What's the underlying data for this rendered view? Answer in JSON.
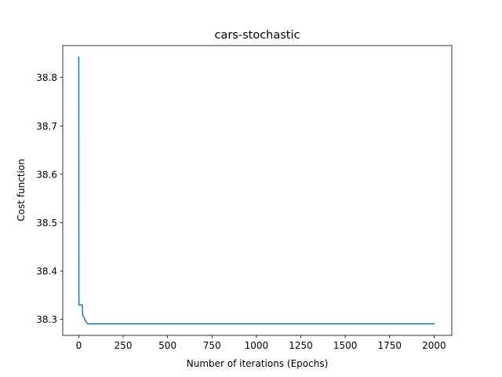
{
  "chart_data": {
    "type": "line",
    "title": "cars-stochastic",
    "xlabel": "Number of iterations (Epochs)",
    "ylabel": "Cost function",
    "xlim": [
      -90,
      2100
    ],
    "ylim": [
      38.267,
      38.866
    ],
    "xticks": [
      0,
      250,
      500,
      750,
      1000,
      1250,
      1500,
      1750,
      2000
    ],
    "xtick_labels": [
      "0",
      "250",
      "500",
      "750",
      "1000",
      "1250",
      "1500",
      "1750",
      "2000"
    ],
    "yticks": [
      38.3,
      38.4,
      38.5,
      38.6,
      38.7,
      38.8
    ],
    "ytick_labels": [
      "38.3",
      "38.4",
      "38.5",
      "38.6",
      "38.7",
      "38.8"
    ],
    "grid": false,
    "legend": "none",
    "series": [
      {
        "color": "#1f77b4",
        "x": [
          0,
          1,
          5,
          20,
          22,
          30,
          35,
          40,
          45,
          50,
          60,
          100,
          500,
          1000,
          1500,
          2000
        ],
        "y": [
          38.842,
          38.33,
          38.33,
          38.33,
          38.308,
          38.305,
          38.298,
          38.297,
          38.293,
          38.291,
          38.291,
          38.291,
          38.291,
          38.291,
          38.291,
          38.291
        ]
      }
    ]
  }
}
